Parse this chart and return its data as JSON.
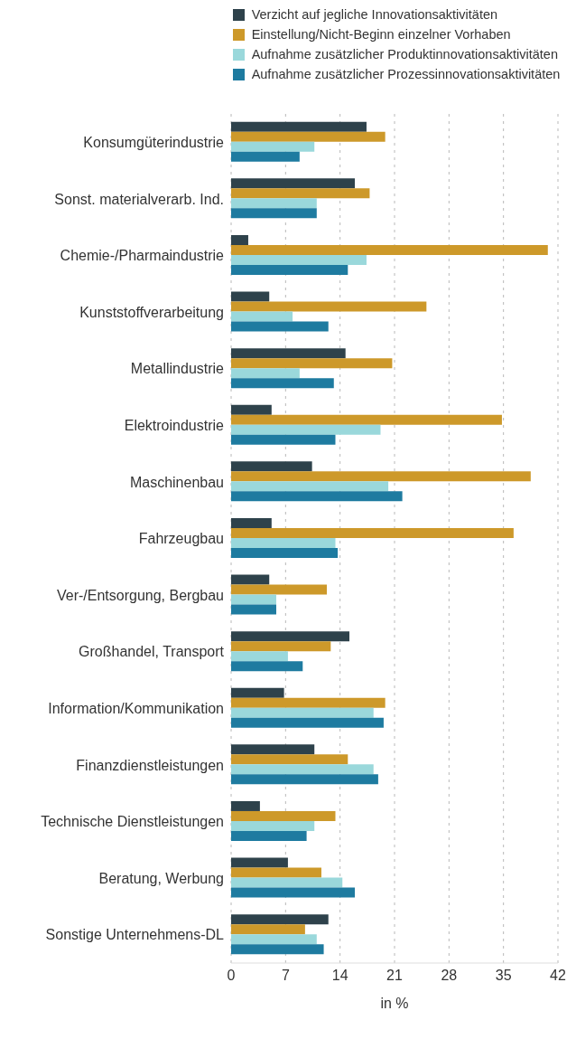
{
  "chart_data": {
    "type": "bar",
    "orientation": "horizontal",
    "xlabel": "in %",
    "categories": [
      "Konsumgüterindustrie",
      "Sonst. materialverarb. Ind.",
      "Chemie-/Pharmaindustrie",
      "Kunststoffverarbeitung",
      "Metallindustrie",
      "Elektroindustrie",
      "Maschinenbau",
      "Fahrzeugbau",
      "Ver-/Entsorgung, Bergbau",
      "Großhandel, Transport",
      "Information/Kommunikation",
      "Finanzdienstleistungen",
      "Technische Dienstleistungen",
      "Beratung, Werbung",
      "Sonstige Unternehmens-DL"
    ],
    "series": [
      {
        "name": "Verzicht auf jegliche Innovationsaktivitäten",
        "color": "#2e424b",
        "values": [
          17.4,
          15.9,
          2.2,
          4.9,
          14.7,
          5.2,
          10.4,
          5.2,
          4.9,
          15.2,
          6.8,
          10.7,
          3.7,
          7.3,
          12.5
        ]
      },
      {
        "name": "Einstellung/Nicht-Beginn einzelner Vorhaben",
        "color": "#cd992a",
        "values": [
          19.8,
          17.8,
          40.7,
          25.1,
          20.7,
          34.8,
          38.5,
          36.3,
          12.3,
          12.8,
          19.8,
          15.0,
          13.4,
          11.6,
          9.5
        ]
      },
      {
        "name": "Aufnahme zusätzlicher Produktinnovationsaktivitäten",
        "color": "#9ad8db",
        "values": [
          10.7,
          11.0,
          17.4,
          7.9,
          8.8,
          19.2,
          20.2,
          13.4,
          5.8,
          7.3,
          18.3,
          18.3,
          10.7,
          14.3,
          11.0
        ]
      },
      {
        "name": "Aufnahme zusätzlicher Prozessinnovationsaktivitäten",
        "color": "#1e7ba0",
        "values": [
          8.8,
          11.0,
          15.0,
          12.5,
          13.2,
          13.4,
          22.0,
          13.7,
          5.8,
          9.2,
          19.6,
          18.9,
          9.7,
          15.9,
          11.9
        ]
      }
    ],
    "xlim": [
      0,
      42
    ],
    "xticks": [
      0,
      7,
      14,
      21,
      28,
      35,
      42
    ],
    "grid": "x",
    "legend": "top"
  }
}
